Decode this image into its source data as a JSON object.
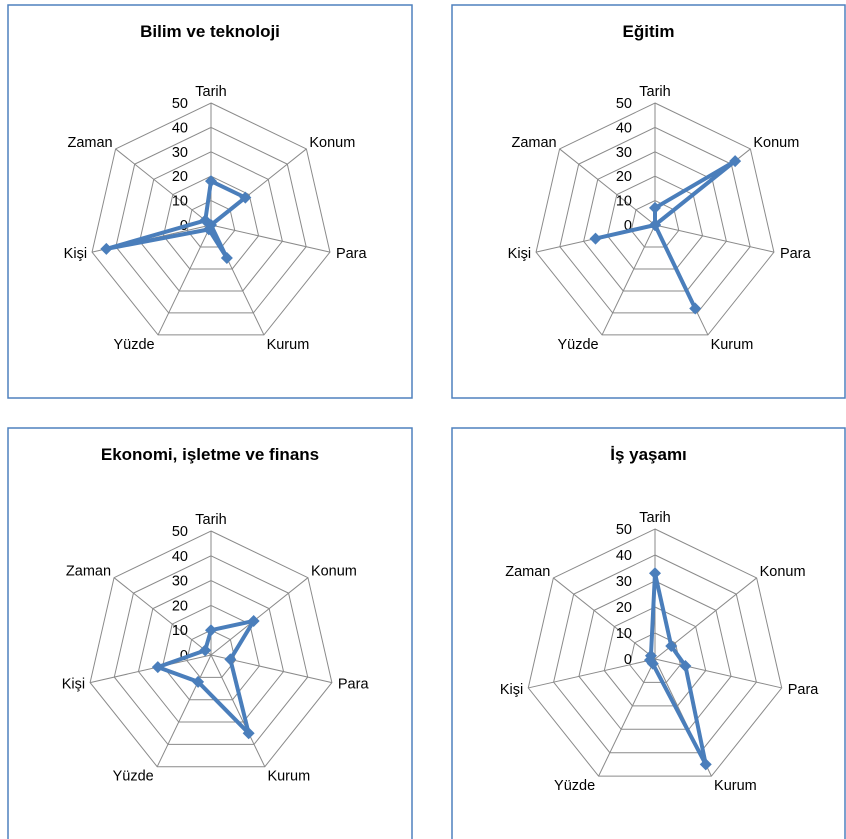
{
  "chart_data": [
    {
      "type": "radar",
      "title": "Bilim ve teknoloji",
      "categories": [
        "Tarih",
        "Konum",
        "Para",
        "Kurum",
        "Yüzde",
        "Kişi",
        "Zaman"
      ],
      "values": [
        18,
        18,
        0,
        15,
        2,
        44,
        3
      ],
      "ticks": [
        "0",
        "10",
        "20",
        "30",
        "40",
        "50"
      ],
      "rlim": [
        0,
        50
      ],
      "legend": "none",
      "grid": true,
      "color": "#4a7ebb"
    },
    {
      "type": "radar",
      "title": "Eğitim",
      "categories": [
        "Tarih",
        "Konum",
        "Para",
        "Kurum",
        "Yüzde",
        "Kişi",
        "Zaman"
      ],
      "values": [
        7,
        42,
        0,
        38,
        0,
        25,
        0
      ],
      "ticks": [
        "0",
        "10",
        "20",
        "30",
        "40",
        "50"
      ],
      "rlim": [
        0,
        50
      ],
      "legend": "none",
      "grid": true,
      "color": "#4a7ebb"
    },
    {
      "type": "radar",
      "title": "Ekonomi, işletme ve finans",
      "categories": [
        "Tarih",
        "Konum",
        "Para",
        "Kurum",
        "Yüzde",
        "Kişi",
        "Zaman"
      ],
      "values": [
        10,
        22,
        8,
        35,
        12,
        22,
        3
      ],
      "ticks": [
        "0",
        "10",
        "20",
        "30",
        "40",
        "50"
      ],
      "rlim": [
        0,
        50
      ],
      "legend": "none",
      "grid": true,
      "color": "#4a7ebb"
    },
    {
      "type": "radar",
      "title": "İş yaşamı",
      "categories": [
        "Tarih",
        "Konum",
        "Para",
        "Kurum",
        "Yüzde",
        "Kişi",
        "Zaman"
      ],
      "values": [
        33,
        8,
        12,
        45,
        2,
        2,
        2
      ],
      "ticks": [
        "0",
        "10",
        "20",
        "30",
        "40",
        "50"
      ],
      "rlim": [
        0,
        50
      ],
      "legend": "none",
      "grid": true,
      "color": "#4a7ebb"
    }
  ]
}
